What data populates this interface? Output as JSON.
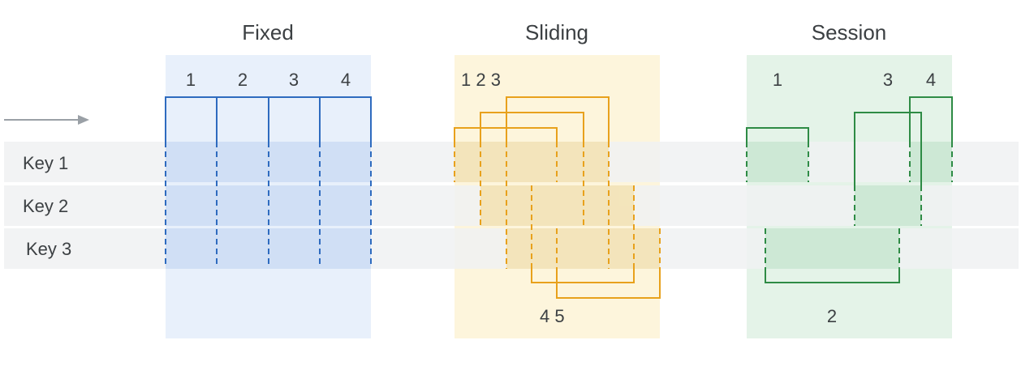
{
  "titles": {
    "fixed": "Fixed",
    "sliding": "Sliding",
    "session": "Session"
  },
  "keys": [
    "Key 1",
    "Key 2",
    "Key 3"
  ],
  "fixed_numbers": [
    "1",
    "2",
    "3",
    "4"
  ],
  "sliding_numbers": {
    "top": "1 2 3",
    "bottom": "4 5"
  },
  "session_numbers": [
    "1",
    "3",
    "4",
    "2"
  ],
  "colors": {
    "fixed_line": "#2e6bbf",
    "fixed_panel": "#e8f0fb",
    "fixed_fill": "#d2e1f7",
    "sliding_line": "#e8a11c",
    "sliding_panel": "#fdf5dc",
    "sliding_fill": "#f7d26e",
    "session_line": "#2e8b45",
    "session_panel": "#e4f3e8",
    "session_fill": "#cde8d5",
    "row_band": "#f0f1f2",
    "arrow": "#9aa0a6"
  },
  "icons": {
    "time_arrow": "arrow-right-icon"
  }
}
